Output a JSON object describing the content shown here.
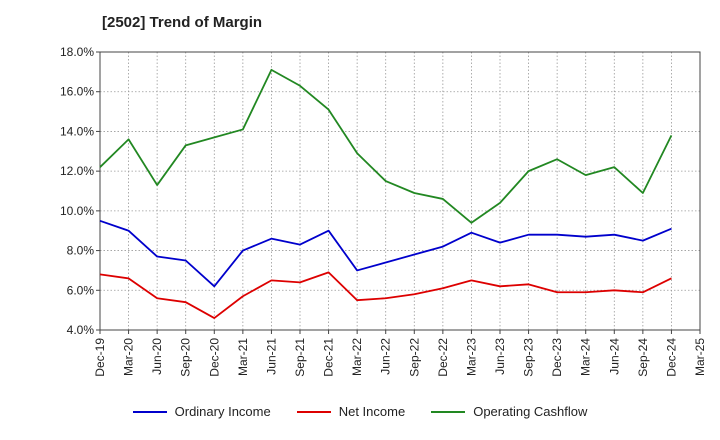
{
  "chart_data": {
    "type": "line",
    "title": "[2502]  Trend of Margin",
    "x": [
      "Dec-19",
      "Mar-20",
      "Jun-20",
      "Sep-20",
      "Dec-20",
      "Mar-21",
      "Jun-21",
      "Sep-21",
      "Dec-21",
      "Mar-22",
      "Jun-22",
      "Sep-22",
      "Dec-22",
      "Mar-23",
      "Jun-23",
      "Sep-23",
      "Dec-23",
      "Mar-24",
      "Jun-24",
      "Sep-24",
      "Dec-24",
      "Mar-25"
    ],
    "y_ticks": [
      "4.0%",
      "6.0%",
      "8.0%",
      "10.0%",
      "12.0%",
      "14.0%",
      "16.0%",
      "18.0%"
    ],
    "ylim": [
      4,
      18
    ],
    "grid": true,
    "legend_position": "bottom",
    "series": [
      {
        "name": "Ordinary Income",
        "color": "#0000cc",
        "values": [
          9.5,
          9.0,
          7.7,
          7.5,
          6.2,
          8.0,
          8.6,
          8.3,
          9.0,
          7.0,
          7.4,
          7.8,
          8.2,
          8.9,
          8.4,
          8.8,
          8.8,
          8.7,
          8.8,
          8.5,
          9.1,
          null
        ]
      },
      {
        "name": "Net Income",
        "color": "#dd0000",
        "values": [
          6.8,
          6.6,
          5.6,
          5.4,
          4.6,
          5.7,
          6.5,
          6.4,
          6.9,
          5.5,
          5.6,
          5.8,
          6.1,
          6.5,
          6.2,
          6.3,
          5.9,
          5.9,
          6.0,
          5.9,
          6.6,
          null
        ]
      },
      {
        "name": "Operating Cashflow",
        "color": "#228822",
        "values": [
          12.2,
          13.6,
          11.3,
          13.3,
          13.7,
          14.1,
          17.1,
          16.3,
          15.1,
          12.9,
          11.5,
          10.9,
          10.6,
          9.4,
          10.4,
          12.0,
          12.6,
          11.8,
          12.2,
          10.9,
          13.8,
          null
        ]
      }
    ]
  }
}
